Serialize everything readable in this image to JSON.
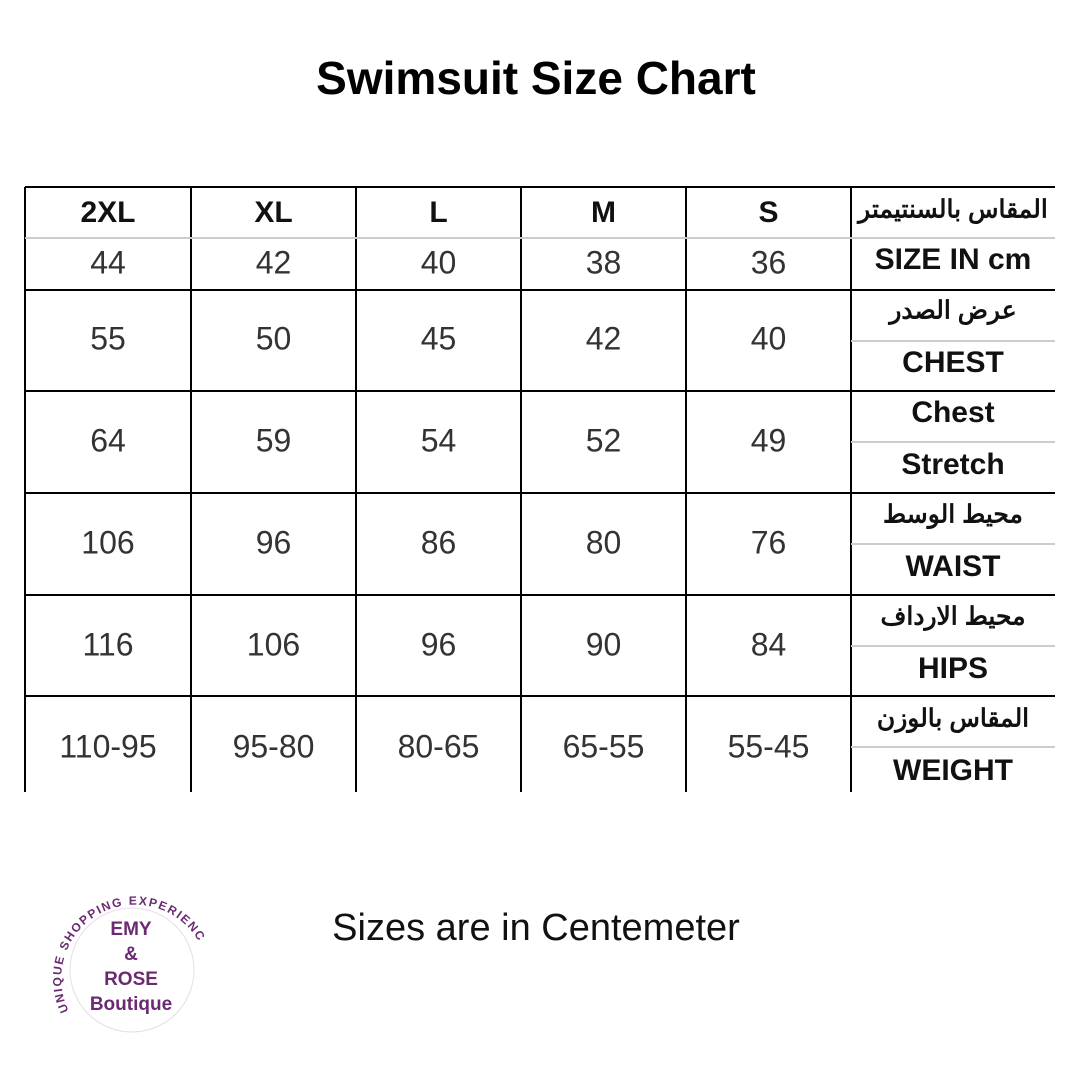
{
  "header": {
    "title": "Swimsuit Size Chart"
  },
  "table": {
    "sizes": [
      "2XL",
      "XL",
      "L",
      "M",
      "S"
    ],
    "rows": [
      {
        "label_top": "المقاس بالسنتيمتر",
        "label_bottom": "SIZE IN cm",
        "values": [
          44,
          42,
          40,
          38,
          36
        ]
      },
      {
        "label_top": "عرض الصدر",
        "label_bottom": "CHEST",
        "values": [
          55,
          50,
          45,
          42,
          40
        ]
      },
      {
        "label_top": "Chest",
        "label_bottom": "Stretch",
        "values": [
          64,
          59,
          54,
          52,
          49
        ]
      },
      {
        "label_top": "محيط الوسط",
        "label_bottom": "WAIST",
        "values": [
          106,
          96,
          86,
          80,
          76
        ]
      },
      {
        "label_top": "محيط الارداف",
        "label_bottom": "HIPS",
        "values": [
          116,
          106,
          96,
          90,
          84
        ]
      },
      {
        "label_top": "المقاس بالوزن",
        "label_bottom": "WEIGHT",
        "values": [
          "110-95",
          "95-80",
          "80-65",
          "65-55",
          "55-45"
        ]
      }
    ]
  },
  "footer": {
    "note": "Sizes are in Centemeter"
  },
  "logo": {
    "ring_text": "UNIQUE SHOPPING EXPERIENCE",
    "lines": [
      "EMY",
      "&",
      "ROSE",
      "Boutique"
    ]
  }
}
